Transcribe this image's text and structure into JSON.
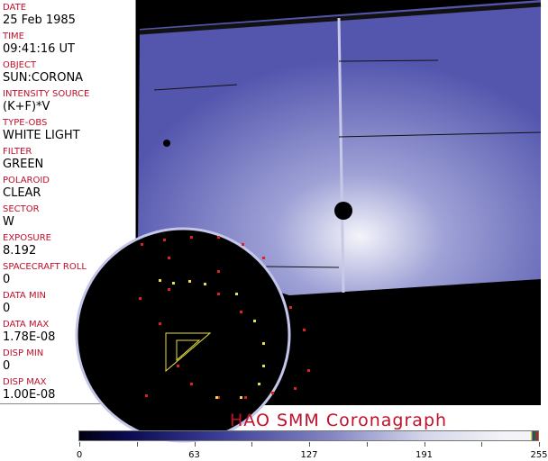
{
  "header": [
    {
      "label": "DATE",
      "value": "25 Feb 1985"
    },
    {
      "label": "TIME",
      "value": "09:41:16 UT"
    },
    {
      "label": "OBJECT",
      "value": "SUN:CORONA"
    },
    {
      "label": "INTENSITY SOURCE",
      "value": "(K+F)*V"
    },
    {
      "label": "TYPE-OBS",
      "value": "WHITE LIGHT"
    },
    {
      "label": "FILTER",
      "value": "GREEN"
    },
    {
      "label": "POLAROID",
      "value": "CLEAR"
    },
    {
      "label": "SECTOR",
      "value": "W"
    },
    {
      "label": "EXPOSURE",
      "value": "8.192"
    },
    {
      "label": "SPACECRAFT ROLL",
      "value": "0"
    },
    {
      "label": "DATA MIN",
      "value": "0"
    },
    {
      "label": "DATA MAX",
      "value": "1.78E-08"
    },
    {
      "label": "DISP MIN",
      "value": "0"
    },
    {
      "label": "DISP MAX",
      "value": "1.00E-08"
    }
  ],
  "title": "HAO   SMM Coronagraph",
  "colorbar": {
    "ticks": [
      "0",
      "63",
      "127",
      "191",
      "255"
    ],
    "colors": {
      "low": "#000010",
      "mid": "#3a3c95",
      "high": "#f4f4f8"
    }
  }
}
